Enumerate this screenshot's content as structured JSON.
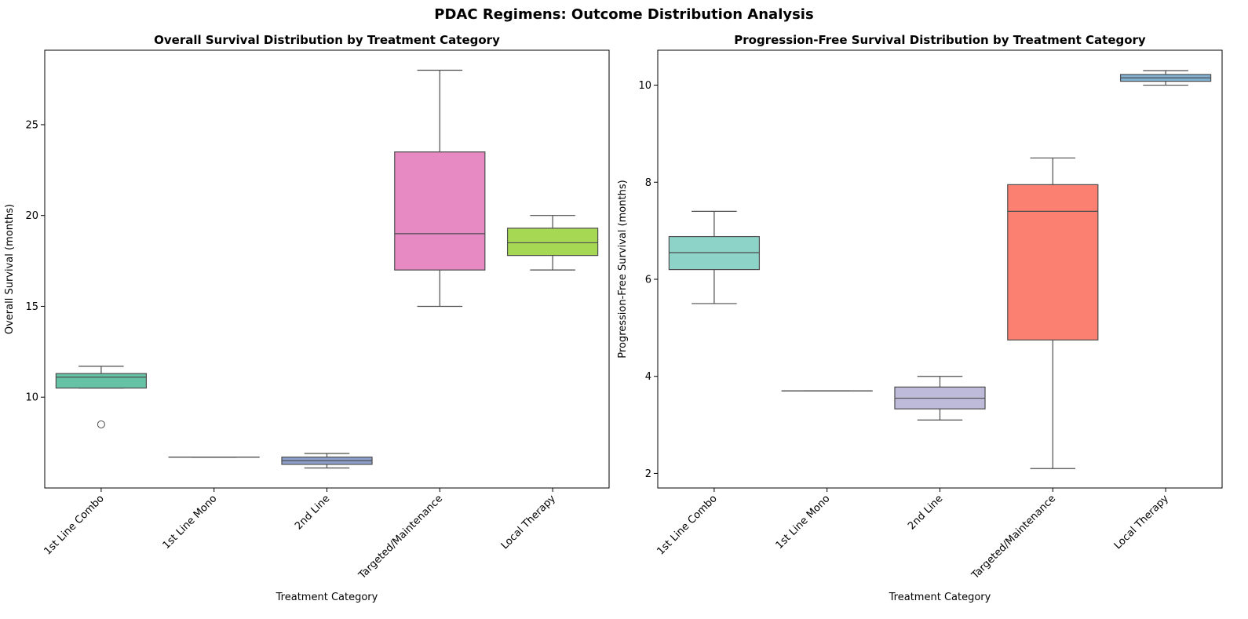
{
  "suptitle": "PDAC Regimens: Outcome Distribution Analysis",
  "chart_data": [
    {
      "type": "box",
      "title": "Overall Survival Distribution by Treatment Category",
      "xlabel": "Treatment Category",
      "ylabel": "Overall Survival (months)",
      "ylim": [
        5.0,
        29.1
      ],
      "yticks": [
        10,
        15,
        20,
        25
      ],
      "grid": false,
      "categories": [
        "1st Line Combo",
        "1st Line Mono",
        "2nd Line",
        "Targeted/Maintenance",
        "Local Therapy"
      ],
      "colors": [
        "#66c2a5",
        "#fc8d62",
        "#8da0cb",
        "#e78ac3",
        "#a6d854"
      ],
      "boxes": [
        {
          "whislo": 10.5,
          "q1": 10.5,
          "med": 11.1,
          "q3": 11.3,
          "whishi": 11.7,
          "fliers": [
            8.5
          ]
        },
        {
          "whislo": 6.7,
          "q1": 6.7,
          "med": 6.7,
          "q3": 6.7,
          "whishi": 6.7,
          "fliers": []
        },
        {
          "whislo": 6.1,
          "q1": 6.3,
          "med": 6.5,
          "q3": 6.7,
          "whishi": 6.9,
          "fliers": []
        },
        {
          "whislo": 15.0,
          "q1": 17.0,
          "med": 19.0,
          "q3": 23.5,
          "whishi": 28.0,
          "fliers": []
        },
        {
          "whislo": 17.0,
          "q1": 17.8,
          "med": 18.5,
          "q3": 19.3,
          "whishi": 20.0,
          "fliers": []
        }
      ]
    },
    {
      "type": "box",
      "title": "Progression-Free Survival Distribution by Treatment Category",
      "xlabel": "Treatment Category",
      "ylabel": "Progression-Free Survival (months)",
      "ylim": [
        1.7,
        10.72
      ],
      "yticks": [
        2,
        4,
        6,
        8,
        10
      ],
      "grid": false,
      "categories": [
        "1st Line Combo",
        "1st Line Mono",
        "2nd Line",
        "Targeted/Maintenance",
        "Local Therapy"
      ],
      "colors": [
        "#8dd3c7",
        "#ffffb3",
        "#bebada",
        "#fb8072",
        "#80b1d3"
      ],
      "boxes": [
        {
          "whislo": 5.5,
          "q1": 6.2,
          "med": 6.55,
          "q3": 6.88,
          "whishi": 7.4,
          "fliers": []
        },
        {
          "whislo": 3.7,
          "q1": 3.7,
          "med": 3.7,
          "q3": 3.7,
          "whishi": 3.7,
          "fliers": []
        },
        {
          "whislo": 3.1,
          "q1": 3.33,
          "med": 3.55,
          "q3": 3.78,
          "whishi": 4.0,
          "fliers": []
        },
        {
          "whislo": 2.1,
          "q1": 4.75,
          "med": 7.4,
          "q3": 7.95,
          "whishi": 8.5,
          "fliers": []
        },
        {
          "whislo": 10.0,
          "q1": 10.08,
          "med": 10.15,
          "q3": 10.22,
          "whishi": 10.3,
          "fliers": []
        }
      ]
    }
  ]
}
